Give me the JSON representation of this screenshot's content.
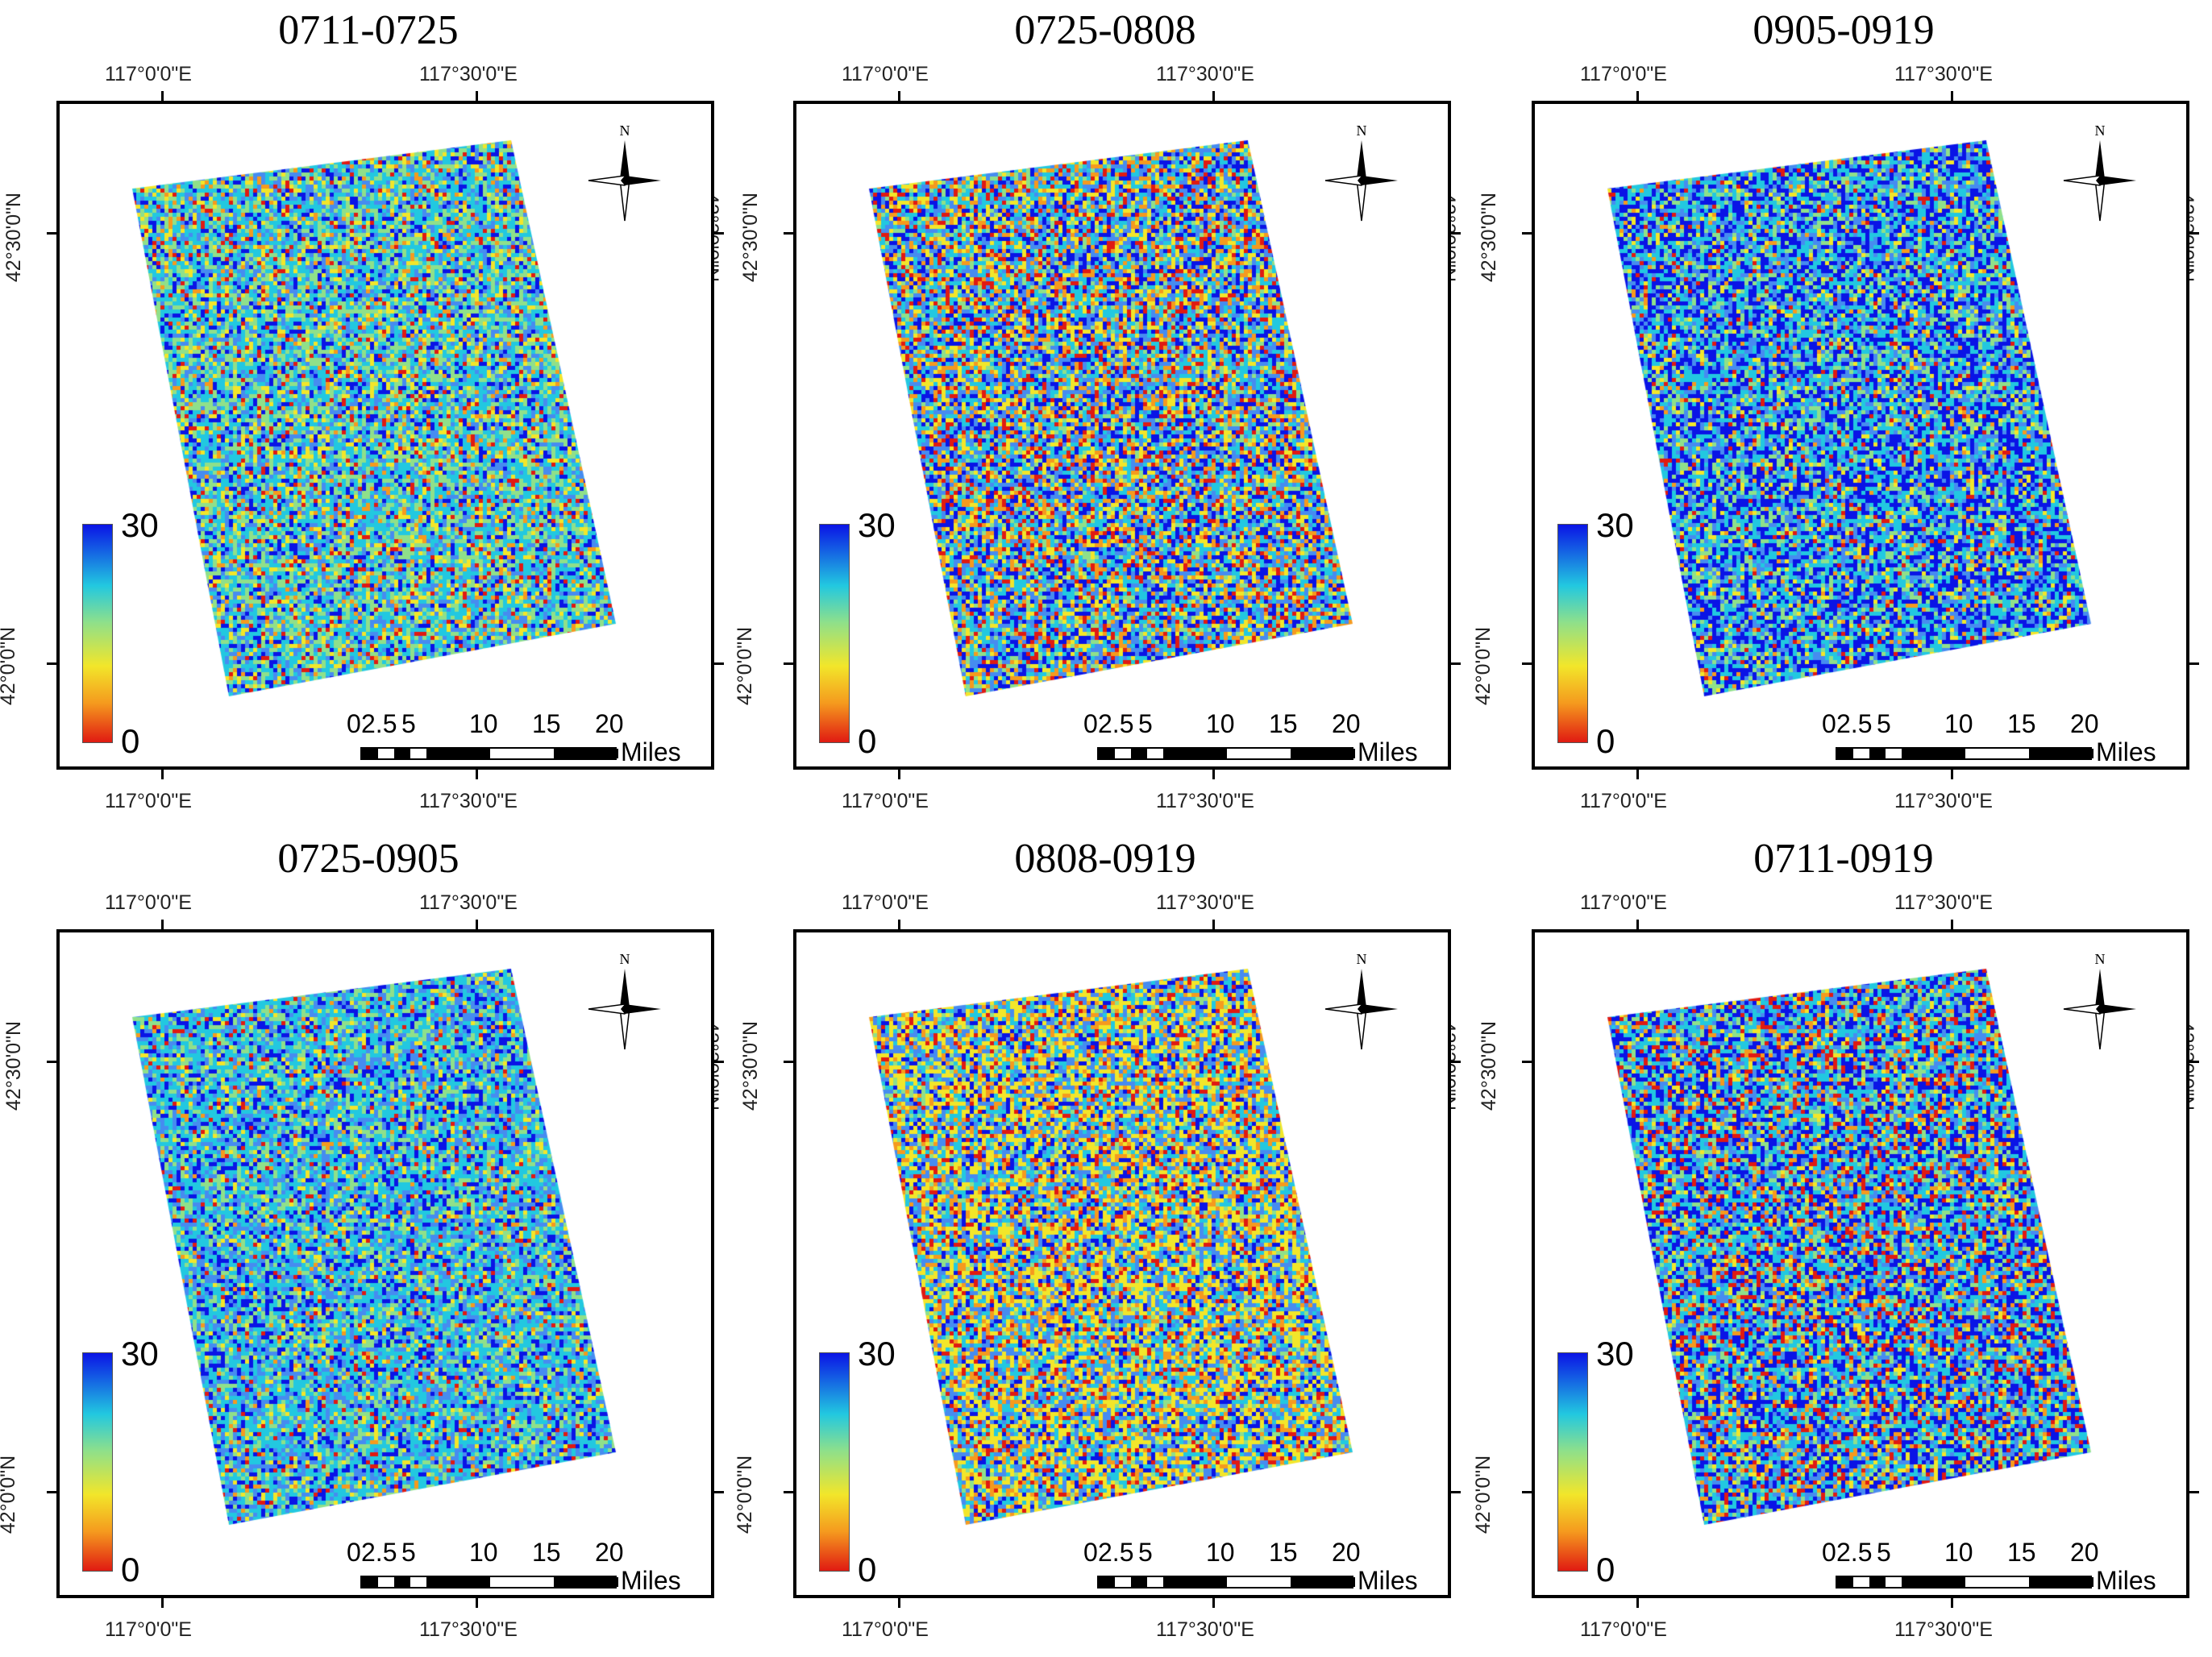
{
  "panels": [
    {
      "title": "0711-0725",
      "pattern": "mixed"
    },
    {
      "title": "0725-0808",
      "pattern": "mixed-dark"
    },
    {
      "title": "0905-0919",
      "pattern": "blue"
    },
    {
      "title": "0725-0905",
      "pattern": "cyan"
    },
    {
      "title": "0808-0919",
      "pattern": "yellow"
    },
    {
      "title": "0711-0919",
      "pattern": "blue-red"
    }
  ],
  "axes": {
    "lon_left": "117°0'0\"E",
    "lon_right": "117°30'0\"E",
    "lat_top": "42°30'0\"N",
    "lat_bottom": "42°0'0\"N"
  },
  "legend": {
    "max_label": "30",
    "min_label": "0",
    "min": 0,
    "max": 30
  },
  "scalebar": {
    "ticks": [
      "0",
      "2.5",
      "5",
      "10",
      "15",
      "20"
    ],
    "unit": "Miles"
  },
  "north_arrow": {
    "label": "N"
  },
  "colors": {
    "blue": "#0a14e6",
    "cyan": "#22c8e0",
    "green": "#8fe08a",
    "yellow": "#f2e62a",
    "orange": "#f59a1e",
    "red": "#e01a12"
  }
}
